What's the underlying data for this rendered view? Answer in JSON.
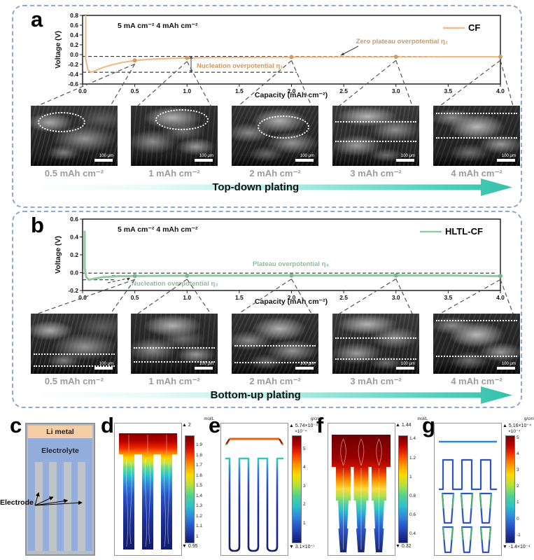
{
  "figure": {
    "panel_a": {
      "letter": "a",
      "condition": "5 mA cm⁻²   4 mAh cm⁻²",
      "legend": "CF",
      "sem_labels": [
        "0.5 mAh cm⁻²",
        "1 mAh cm⁻²",
        "2 mAh cm⁻²",
        "3 mAh cm⁻²",
        "4 mAh cm⁻²"
      ],
      "scale_bar": "100 μm",
      "arrow_label": "Top-down plating"
    },
    "panel_b": {
      "letter": "b",
      "condition": "5 mA cm⁻²   4 mAh cm⁻²",
      "legend": "HLTL-CF",
      "sem_labels": [
        "0.5 mAh cm⁻²",
        "1 mAh cm⁻²",
        "2 mAh cm⁻²",
        "3 mAh cm⁻²",
        "4 mAh cm⁻²"
      ],
      "scale_bar": "100 μm",
      "arrow_label": "Bottom-up plating"
    },
    "panel_c": {
      "letter": "c",
      "li_metal": "Li metal",
      "electrolyte": "Electrolyte",
      "electrode": "Electrode"
    },
    "panel_d": {
      "letter": "d",
      "colorbar": {
        "unit": "mol/L",
        "max": "▲ 2",
        "min": "▼ 0.95",
        "ticks": [
          "1.9",
          "1.8",
          "1.7",
          "1.6",
          "1.5",
          "1.4",
          "1.3",
          "1.2",
          "1.1",
          "1"
        ]
      }
    },
    "panel_e": {
      "letter": "e",
      "colorbar": {
        "unit": "g/cm²",
        "max": "▲ 5.74×10⁻⁴",
        "multiplier": "×10⁻⁴",
        "min": "▼ 3.1×10⁻⁷",
        "ticks": [
          "5",
          "4",
          "3",
          "2",
          "1"
        ]
      }
    },
    "panel_f": {
      "letter": "f",
      "colorbar": {
        "unit": "mol/L",
        "max": "▲ 1.44",
        "min": "▼ 0.32",
        "ticks": [
          "1.4",
          "1.2",
          "1",
          "0.8",
          "0.6",
          "0.4"
        ]
      }
    },
    "panel_g": {
      "letter": "g",
      "colorbar": {
        "unit": "g/cm²",
        "max": "▲ 5.16×10⁻⁴",
        "multiplier": "×10⁻⁴",
        "min": "▼ -1.4×10⁻⁴",
        "ticks": [
          "5",
          "4",
          "3",
          "2",
          "1",
          "0",
          "-1"
        ]
      }
    }
  },
  "chart_data": [
    {
      "type": "line",
      "panel": "a",
      "name": "CF",
      "title": "",
      "xlabel": "Capacity (mAh cm⁻²)",
      "ylabel": "Voltage (V)",
      "xlim": [
        0,
        4
      ],
      "ylim": [
        -0.6,
        0.8
      ],
      "xticks": [
        0.0,
        0.5,
        1.0,
        1.5,
        2.0,
        2.5,
        3.0,
        3.5,
        4.0
      ],
      "yticks": [
        0.8,
        0.6,
        0.4,
        0.2,
        0.0,
        -0.2,
        -0.4,
        -0.6
      ],
      "line_color": "#ecbd8e",
      "marker_color": "#d79a63",
      "x": [
        0.03,
        0.03,
        0.05,
        0.08,
        0.13,
        0.2,
        0.28,
        0.38,
        0.5,
        0.65,
        0.8,
        1.0,
        1.3,
        1.7,
        2.2,
        3.0,
        3.5,
        4.0
      ],
      "y": [
        0.8,
        -0.1,
        -0.31,
        -0.36,
        -0.32,
        -0.26,
        -0.21,
        -0.16,
        -0.12,
        -0.095,
        -0.08,
        -0.068,
        -0.06,
        -0.055,
        -0.05,
        -0.047,
        -0.045,
        -0.045
      ],
      "markers_x": [
        0.5,
        1.0,
        2.0,
        3.0,
        4.0
      ],
      "markers_y": [
        -0.12,
        -0.068,
        -0.05,
        -0.047,
        -0.045
      ],
      "dash_lines": [
        {
          "y": -0.036,
          "x0": 0,
          "x1": 4.0
        },
        {
          "y": -0.36,
          "x0": 0,
          "x1": 2.05
        }
      ],
      "annotations": [
        "Zero plateau overpotential η₂",
        "Nucleation overpotential η₁"
      ]
    },
    {
      "type": "line",
      "panel": "b",
      "name": "HLTL-CF",
      "title": "",
      "xlabel": "Capacity (mAh cm⁻²)",
      "ylabel": "Voltage (V)",
      "xlim": [
        0,
        4
      ],
      "ylim": [
        -0.2,
        0.6
      ],
      "xticks": [
        0.0,
        0.5,
        1.0,
        1.5,
        2.0,
        2.5,
        3.0,
        3.5,
        4.0
      ],
      "yticks": [
        0.6,
        0.4,
        0.2,
        0.0,
        -0.2
      ],
      "line_color": "#94c9a1",
      "marker_color": "#79b88b",
      "x": [
        0.02,
        0.02,
        0.035,
        0.06,
        0.1,
        0.2,
        0.35,
        0.5,
        1.0,
        1.5,
        2.0,
        2.5,
        3.0,
        3.5,
        4.0
      ],
      "y": [
        0.47,
        0.05,
        -0.05,
        -0.08,
        -0.07,
        -0.05,
        -0.04,
        -0.037,
        -0.034,
        -0.033,
        -0.032,
        -0.032,
        -0.031,
        -0.032,
        -0.038
      ],
      "markers_x": [
        0.5,
        1.0,
        2.0,
        3.0,
        4.0
      ],
      "markers_y": [
        -0.037,
        -0.034,
        -0.032,
        -0.031,
        -0.038
      ],
      "dash_lines": [
        {
          "y": -0.005,
          "x0": 0,
          "x1": 3.95
        },
        {
          "y": -0.033,
          "x0": 0.28,
          "x1": 3.95
        },
        {
          "y": -0.08,
          "x0": 0,
          "x1": 0.32
        }
      ],
      "annotations": [
        "Plateau overpotential η₄",
        "Nucleation overpotential η₃"
      ]
    }
  ]
}
